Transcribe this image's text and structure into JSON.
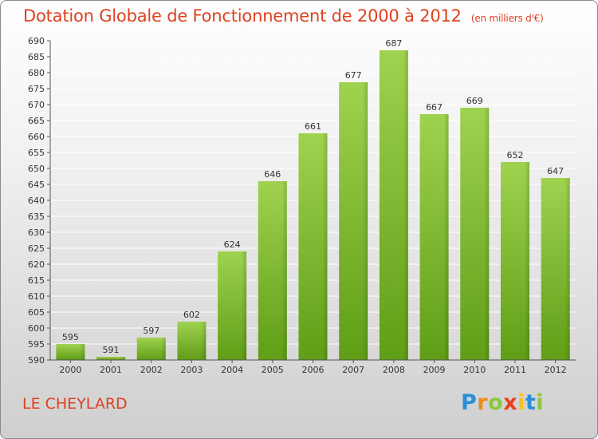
{
  "chart_data": {
    "type": "bar",
    "title": "Dotation Globale de Fonctionnement de 2000 à 2012",
    "subtitle": "(en milliers d'€)",
    "categories": [
      "2000",
      "2001",
      "2002",
      "2003",
      "2004",
      "2005",
      "2006",
      "2007",
      "2008",
      "2009",
      "2010",
      "2011",
      "2012"
    ],
    "values": [
      595,
      591,
      597,
      602,
      624,
      646,
      661,
      677,
      687,
      667,
      669,
      652,
      647
    ],
    "ylim": [
      590,
      690
    ],
    "ytick_step": 5,
    "grid": true,
    "bar_color": "#7cbf2d",
    "xlabel": "",
    "ylabel": ""
  },
  "footer": {
    "commune": "LE CHEYLARD",
    "logo_letters": [
      {
        "ch": "P",
        "color": "#2a8fd6"
      },
      {
        "ch": "r",
        "color": "#f08a1c"
      },
      {
        "ch": "o",
        "color": "#8cc63f"
      },
      {
        "ch": "x",
        "color": "#e8401c"
      },
      {
        "ch": "i",
        "color": "#f6c21c"
      },
      {
        "ch": "t",
        "color": "#2a8fd6"
      },
      {
        "ch": "i",
        "color": "#8cc63f"
      }
    ]
  },
  "colors": {
    "accent": "#e0401f",
    "bar": "#7cbf2d",
    "grid": "#ffffff"
  }
}
